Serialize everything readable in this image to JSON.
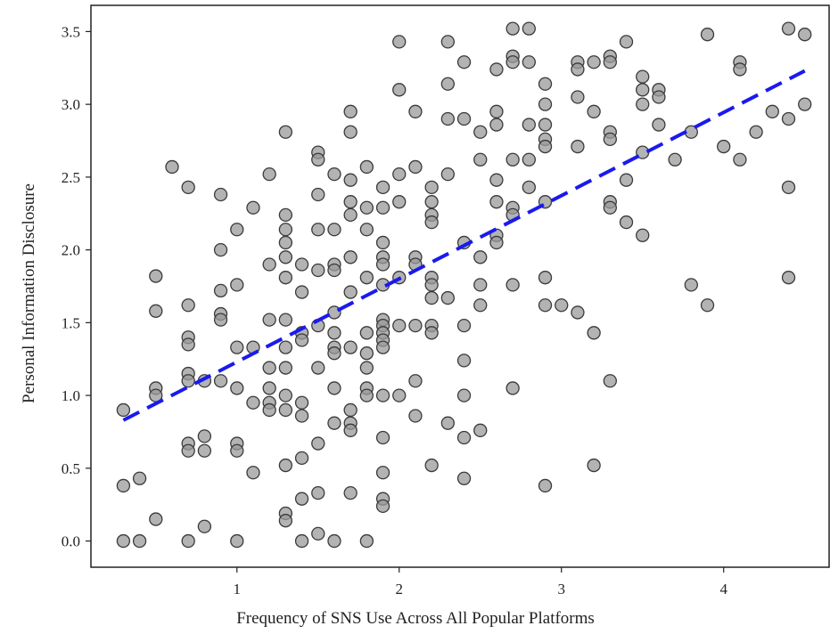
{
  "chart_data": {
    "type": "scatter",
    "xlabel": "Frequency of SNS Use Across All Popular Platforms",
    "ylabel": "Personal Information Disclosure",
    "xlim": [
      0.1,
      4.65
    ],
    "ylim": [
      -0.18,
      3.68
    ],
    "x_ticks": [
      1,
      2,
      3,
      4
    ],
    "x_tick_labels": [
      "1",
      "2",
      "3",
      "4"
    ],
    "y_ticks": [
      0.0,
      0.5,
      1.0,
      1.5,
      2.0,
      2.5,
      3.0,
      3.5
    ],
    "y_tick_labels": [
      "0.0",
      "0.5",
      "1.0",
      "1.5",
      "2.0",
      "2.5",
      "3.0",
      "3.5"
    ],
    "grid": false,
    "trend_line": {
      "style": "dashed",
      "color": "#1a1aee",
      "x": [
        0.3,
        4.5
      ],
      "y": [
        0.83,
        3.23
      ]
    },
    "colors": {
      "point_fill": "#999999",
      "point_edge": "#3a3a3a",
      "trend": "#1a1aee"
    },
    "points": [
      [
        0.3,
        0.9
      ],
      [
        0.3,
        0.38
      ],
      [
        0.3,
        0.0
      ],
      [
        0.4,
        0.43
      ],
      [
        0.4,
        0.0
      ],
      [
        0.5,
        1.82
      ],
      [
        0.5,
        1.58
      ],
      [
        0.5,
        1.05
      ],
      [
        0.5,
        1.0
      ],
      [
        0.5,
        0.15
      ],
      [
        0.6,
        2.57
      ],
      [
        0.7,
        2.43
      ],
      [
        0.7,
        1.62
      ],
      [
        0.7,
        1.4
      ],
      [
        0.7,
        1.35
      ],
      [
        0.7,
        1.15
      ],
      [
        0.7,
        1.1
      ],
      [
        0.7,
        0.67
      ],
      [
        0.7,
        0.62
      ],
      [
        0.7,
        0.0
      ],
      [
        0.8,
        1.1
      ],
      [
        0.8,
        0.72
      ],
      [
        0.8,
        0.62
      ],
      [
        0.8,
        0.1
      ],
      [
        0.9,
        2.38
      ],
      [
        0.9,
        2.0
      ],
      [
        0.9,
        1.72
      ],
      [
        0.9,
        1.56
      ],
      [
        0.9,
        1.52
      ],
      [
        0.9,
        1.1
      ],
      [
        1.0,
        2.14
      ],
      [
        1.0,
        1.76
      ],
      [
        1.0,
        1.33
      ],
      [
        1.0,
        1.05
      ],
      [
        1.0,
        0.67
      ],
      [
        1.0,
        0.62
      ],
      [
        1.0,
        0.0
      ],
      [
        1.1,
        2.29
      ],
      [
        1.1,
        1.33
      ],
      [
        1.1,
        0.95
      ],
      [
        1.1,
        0.47
      ],
      [
        1.2,
        2.52
      ],
      [
        1.2,
        1.9
      ],
      [
        1.2,
        1.52
      ],
      [
        1.2,
        1.19
      ],
      [
        1.2,
        1.05
      ],
      [
        1.2,
        0.95
      ],
      [
        1.2,
        0.9
      ],
      [
        1.3,
        2.81
      ],
      [
        1.3,
        2.24
      ],
      [
        1.3,
        2.14
      ],
      [
        1.3,
        2.05
      ],
      [
        1.3,
        1.95
      ],
      [
        1.3,
        1.81
      ],
      [
        1.3,
        1.52
      ],
      [
        1.3,
        1.33
      ],
      [
        1.3,
        1.19
      ],
      [
        1.3,
        1.0
      ],
      [
        1.3,
        0.9
      ],
      [
        1.3,
        0.52
      ],
      [
        1.3,
        0.19
      ],
      [
        1.3,
        0.14
      ],
      [
        1.4,
        1.9
      ],
      [
        1.4,
        1.71
      ],
      [
        1.4,
        1.43
      ],
      [
        1.4,
        1.38
      ],
      [
        1.4,
        0.95
      ],
      [
        1.4,
        0.86
      ],
      [
        1.4,
        0.57
      ],
      [
        1.4,
        0.29
      ],
      [
        1.4,
        0.0
      ],
      [
        1.5,
        2.67
      ],
      [
        1.5,
        2.62
      ],
      [
        1.5,
        2.38
      ],
      [
        1.5,
        2.14
      ],
      [
        1.5,
        1.86
      ],
      [
        1.5,
        1.48
      ],
      [
        1.5,
        1.19
      ],
      [
        1.5,
        0.67
      ],
      [
        1.5,
        0.33
      ],
      [
        1.5,
        0.05
      ],
      [
        1.6,
        2.52
      ],
      [
        1.6,
        2.14
      ],
      [
        1.6,
        1.9
      ],
      [
        1.6,
        1.86
      ],
      [
        1.6,
        1.57
      ],
      [
        1.6,
        1.43
      ],
      [
        1.6,
        1.33
      ],
      [
        1.6,
        1.29
      ],
      [
        1.6,
        1.05
      ],
      [
        1.6,
        0.81
      ],
      [
        1.6,
        0.0
      ],
      [
        1.7,
        2.95
      ],
      [
        1.7,
        2.81
      ],
      [
        1.7,
        2.48
      ],
      [
        1.7,
        2.33
      ],
      [
        1.7,
        2.24
      ],
      [
        1.7,
        1.95
      ],
      [
        1.7,
        1.71
      ],
      [
        1.7,
        1.33
      ],
      [
        1.7,
        0.9
      ],
      [
        1.7,
        0.81
      ],
      [
        1.7,
        0.76
      ],
      [
        1.7,
        0.33
      ],
      [
        1.8,
        2.57
      ],
      [
        1.8,
        2.29
      ],
      [
        1.8,
        2.14
      ],
      [
        1.8,
        1.81
      ],
      [
        1.8,
        1.43
      ],
      [
        1.8,
        1.29
      ],
      [
        1.8,
        1.19
      ],
      [
        1.8,
        1.05
      ],
      [
        1.8,
        1.0
      ],
      [
        1.8,
        0.0
      ],
      [
        1.9,
        2.43
      ],
      [
        1.9,
        2.29
      ],
      [
        1.9,
        2.05
      ],
      [
        1.9,
        1.95
      ],
      [
        1.9,
        1.9
      ],
      [
        1.9,
        1.76
      ],
      [
        1.9,
        1.52
      ],
      [
        1.9,
        1.48
      ],
      [
        1.9,
        1.43
      ],
      [
        1.9,
        1.38
      ],
      [
        1.9,
        1.33
      ],
      [
        1.9,
        1.0
      ],
      [
        1.9,
        0.71
      ],
      [
        1.9,
        0.47
      ],
      [
        1.9,
        0.29
      ],
      [
        1.9,
        0.24
      ],
      [
        2.0,
        3.43
      ],
      [
        2.0,
        3.1
      ],
      [
        2.0,
        2.52
      ],
      [
        2.0,
        2.33
      ],
      [
        2.0,
        1.81
      ],
      [
        2.0,
        1.48
      ],
      [
        2.0,
        1.0
      ],
      [
        2.1,
        2.95
      ],
      [
        2.1,
        2.57
      ],
      [
        2.1,
        1.95
      ],
      [
        2.1,
        1.9
      ],
      [
        2.1,
        1.48
      ],
      [
        2.1,
        1.1
      ],
      [
        2.1,
        0.86
      ],
      [
        2.2,
        2.43
      ],
      [
        2.2,
        2.33
      ],
      [
        2.2,
        2.24
      ],
      [
        2.2,
        2.19
      ],
      [
        2.2,
        1.81
      ],
      [
        2.2,
        1.76
      ],
      [
        2.2,
        1.67
      ],
      [
        2.2,
        1.48
      ],
      [
        2.2,
        1.43
      ],
      [
        2.2,
        0.52
      ],
      [
        2.3,
        3.43
      ],
      [
        2.3,
        3.14
      ],
      [
        2.3,
        2.9
      ],
      [
        2.3,
        2.52
      ],
      [
        2.3,
        1.67
      ],
      [
        2.3,
        0.81
      ],
      [
        2.4,
        3.29
      ],
      [
        2.4,
        2.9
      ],
      [
        2.4,
        2.05
      ],
      [
        2.4,
        1.48
      ],
      [
        2.4,
        1.24
      ],
      [
        2.4,
        1.0
      ],
      [
        2.4,
        0.71
      ],
      [
        2.4,
        0.43
      ],
      [
        2.5,
        2.81
      ],
      [
        2.5,
        2.62
      ],
      [
        2.5,
        1.95
      ],
      [
        2.5,
        1.76
      ],
      [
        2.5,
        1.62
      ],
      [
        2.5,
        0.76
      ],
      [
        2.6,
        3.24
      ],
      [
        2.6,
        2.95
      ],
      [
        2.6,
        2.86
      ],
      [
        2.6,
        2.48
      ],
      [
        2.6,
        2.33
      ],
      [
        2.6,
        2.1
      ],
      [
        2.6,
        2.05
      ],
      [
        2.7,
        3.52
      ],
      [
        2.7,
        3.33
      ],
      [
        2.7,
        3.29
      ],
      [
        2.7,
        2.62
      ],
      [
        2.7,
        2.29
      ],
      [
        2.7,
        2.24
      ],
      [
        2.7,
        1.76
      ],
      [
        2.7,
        1.05
      ],
      [
        2.8,
        3.52
      ],
      [
        2.8,
        3.29
      ],
      [
        2.8,
        2.86
      ],
      [
        2.8,
        2.62
      ],
      [
        2.8,
        2.43
      ],
      [
        2.9,
        3.14
      ],
      [
        2.9,
        3.0
      ],
      [
        2.9,
        2.86
      ],
      [
        2.9,
        2.76
      ],
      [
        2.9,
        2.71
      ],
      [
        2.9,
        2.33
      ],
      [
        2.9,
        1.81
      ],
      [
        2.9,
        1.62
      ],
      [
        2.9,
        0.38
      ],
      [
        3.0,
        1.62
      ],
      [
        3.1,
        3.29
      ],
      [
        3.1,
        3.24
      ],
      [
        3.1,
        3.05
      ],
      [
        3.1,
        2.71
      ],
      [
        3.1,
        1.57
      ],
      [
        3.2,
        3.29
      ],
      [
        3.2,
        2.95
      ],
      [
        3.2,
        1.43
      ],
      [
        3.2,
        0.52
      ],
      [
        3.3,
        3.33
      ],
      [
        3.3,
        3.29
      ],
      [
        3.3,
        2.81
      ],
      [
        3.3,
        2.76
      ],
      [
        3.3,
        2.33
      ],
      [
        3.3,
        2.29
      ],
      [
        3.3,
        1.1
      ],
      [
        3.4,
        3.43
      ],
      [
        3.4,
        2.48
      ],
      [
        3.4,
        2.19
      ],
      [
        3.5,
        3.19
      ],
      [
        3.5,
        3.1
      ],
      [
        3.5,
        3.0
      ],
      [
        3.5,
        2.67
      ],
      [
        3.5,
        2.1
      ],
      [
        3.6,
        3.1
      ],
      [
        3.6,
        3.05
      ],
      [
        3.6,
        2.86
      ],
      [
        3.7,
        2.62
      ],
      [
        3.8,
        2.81
      ],
      [
        3.8,
        1.76
      ],
      [
        3.9,
        3.48
      ],
      [
        3.9,
        1.62
      ],
      [
        4.0,
        2.71
      ],
      [
        4.1,
        3.29
      ],
      [
        4.1,
        3.24
      ],
      [
        4.1,
        2.62
      ],
      [
        4.2,
        2.81
      ],
      [
        4.3,
        2.95
      ],
      [
        4.4,
        3.52
      ],
      [
        4.4,
        2.9
      ],
      [
        4.4,
        2.43
      ],
      [
        4.4,
        1.81
      ],
      [
        4.5,
        3.48
      ],
      [
        4.5,
        3.0
      ]
    ]
  }
}
